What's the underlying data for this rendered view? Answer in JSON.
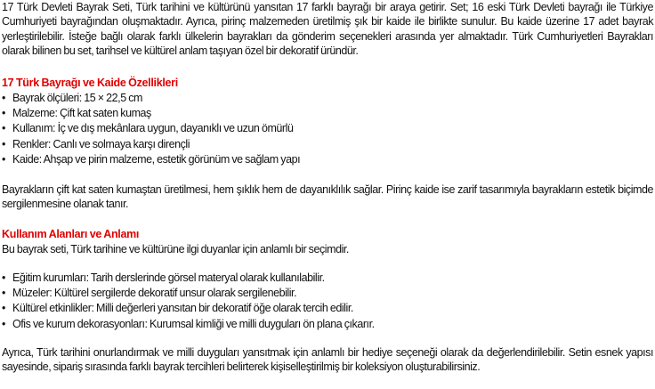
{
  "intro": "17 Türk Devleti Bayrak Seti, Türk tarihini ve kültürünü yansıtan 17 farklı bayrağı bir araya getirir. Set; 16 eski Türk Devleti bayrağı ile Türkiye Cumhuriyeti bayrağından oluşmaktadır. Ayrıca, pirinç malzemeden üretilmiş şık bir kaide ile birlikte sunulur. Bu kaide üzerine 17 adet bayrak yerleştirilebilir. İsteğe bağlı olarak farklı ülkelerin bayrakları da gönderim seçenekleri arasında yer almaktadır. Türk Cumhuriyetleri Bayrakları olarak bilinen bu set, tarihsel ve kültürel anlam taşıyan özel bir dekoratif üründür.",
  "features": {
    "heading": "17 Türk Bayrağı ve Kaide Özellikleri",
    "items": [
      "Bayrak ölçüleri: 15 × 22,5 cm",
      "Malzeme: Çift kat saten kumaş",
      "Kullanım: İç ve dış mekânlara uygun, dayanıklı ve uzun ömürlü",
      "Renkler: Canlı ve solmaya karşı dirençli",
      "Kaide: Ahşap ve pirin malzeme, estetik görünüm ve sağlam yapı"
    ],
    "paragraph": "Bayrakların çift kat saten kumaştan üretilmesi, hem şıklık hem de dayanıklılık sağlar. Pirinç kaide ise zarif tasarımıyla bayrakların estetik biçimde sergilenmesine olanak tanır."
  },
  "usage": {
    "heading": "Kullanım Alanları ve Anlamı",
    "intro": "Bu bayrak seti, Türk tarihine ve kültürüne ilgi duyanlar için anlamlı bir seçimdir.",
    "items": [
      "Eğitim kurumları: Tarih derslerinde görsel materyal olarak kullanılabilir.",
      "Müzeler: Kültürel sergilerde dekoratif unsur olarak sergilenebilir.",
      "Kültürel etkinlikler: Milli değerleri yansıtan bir dekoratif öğe olarak tercih edilir.",
      "Ofis ve kurum dekorasyonları: Kurumsal kimliği ve milli duyguları ön plana çıkarır."
    ],
    "closing": "Ayrıca, Türk tarihini onurlandırmak ve milli duyguları yansıtmak için anlamlı bir hediye seçeneği olarak da değerlendirilebilir. Setin esnek yapısı sayesinde, sipariş sırasında farklı bayrak tercihleri belirterek kişiselleştirilmiş bir koleksiyon oluşturabilirsiniz."
  },
  "colors": {
    "heading": "#e00000",
    "text": "#111111"
  }
}
